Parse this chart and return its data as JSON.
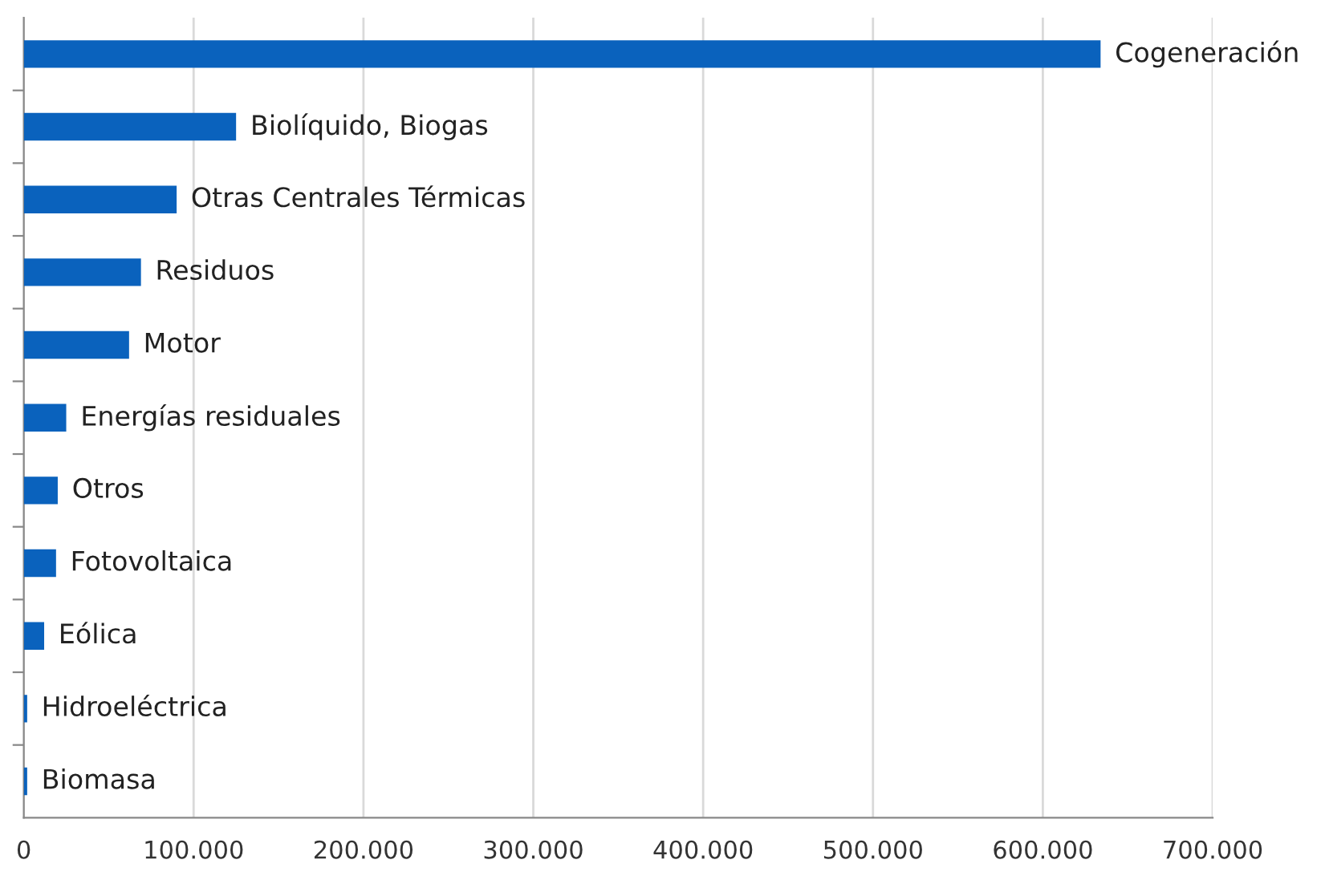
{
  "chart_data": {
    "type": "bar",
    "orientation": "horizontal",
    "categories": [
      "Cogeneración",
      "Biolíquido, Biogas",
      "Otras Centrales Térmicas",
      "Residuos",
      "Motor",
      "Energías residuales",
      "Otros",
      "Fotovoltaica",
      "Eólica",
      "Hidroeléctrica",
      "Biomasa"
    ],
    "values": [
      634000,
      125000,
      90000,
      69000,
      62000,
      25000,
      20000,
      19000,
      12000,
      2000,
      2000
    ],
    "color": "#0a62bd",
    "xlim": [
      0,
      700000
    ],
    "xticks": [
      {
        "value": 0,
        "label": "0"
      },
      {
        "value": 100000,
        "label": "100.000"
      },
      {
        "value": 200000,
        "label": "200.000"
      },
      {
        "value": 300000,
        "label": "300.000"
      },
      {
        "value": 400000,
        "label": "400.000"
      },
      {
        "value": 500000,
        "label": "500.000"
      },
      {
        "value": 600000,
        "label": "600.000"
      },
      {
        "value": 700000,
        "label": "700.000"
      }
    ],
    "grid": "x",
    "legend": false
  }
}
